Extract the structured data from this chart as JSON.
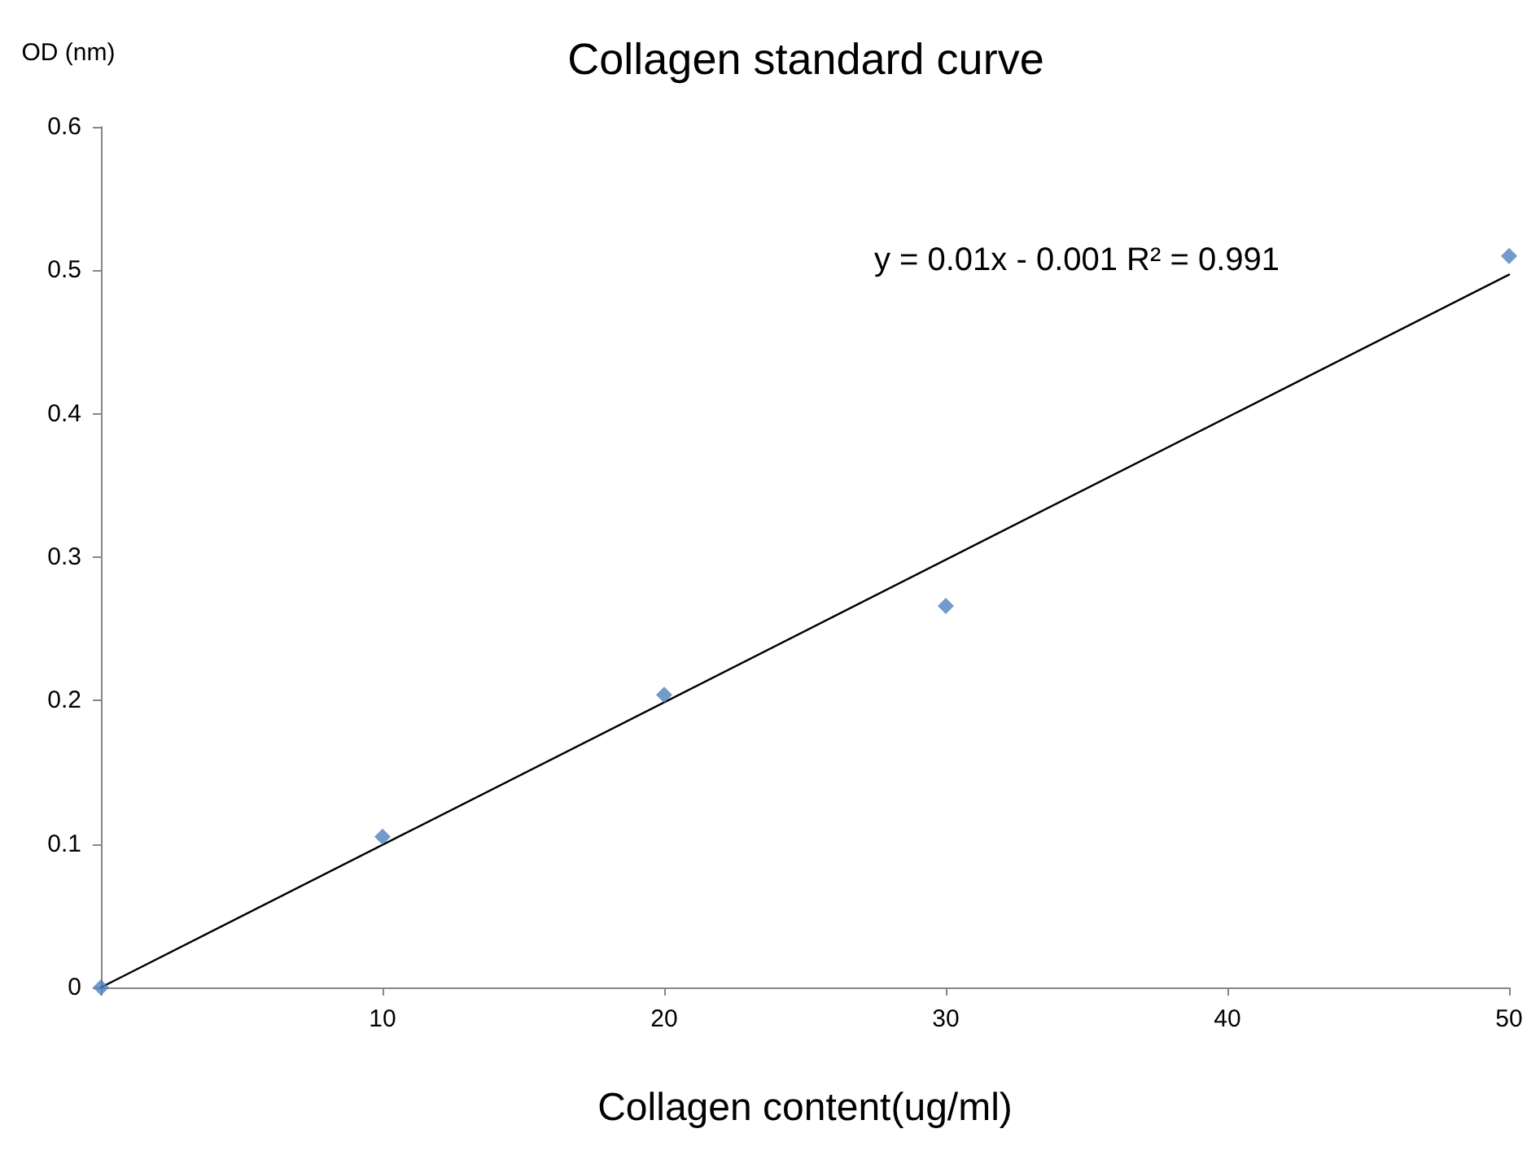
{
  "chart_data": {
    "type": "scatter",
    "title": "Collagen standard curve",
    "xlabel": "Collagen content(ug/ml)",
    "ylabel": "OD (nm)",
    "annotations": [
      "y = 0.01x - 0.001 R² = 0.991"
    ],
    "xlim": [
      0,
      50
    ],
    "xticks": [
      {
        "value": 0,
        "label": null
      },
      10,
      20,
      30,
      40,
      50
    ],
    "ylim": [
      0,
      0.6
    ],
    "yticks": [
      0,
      0.1,
      0.2,
      0.3,
      0.4,
      0.5,
      0.6
    ],
    "grid": false,
    "marker": "diamond",
    "series": [
      {
        "x": [
          0,
          10,
          20,
          30,
          50
        ],
        "values": [
          0,
          0.105,
          0.204,
          0.266,
          0.51
        ],
        "color": "#4f81bd"
      },
      {
        "type": "line",
        "x": [
          0,
          50
        ],
        "values": [
          0,
          0.497
        ],
        "color": "#000000",
        "marker": "none",
        "line_style": "solid"
      }
    ]
  }
}
